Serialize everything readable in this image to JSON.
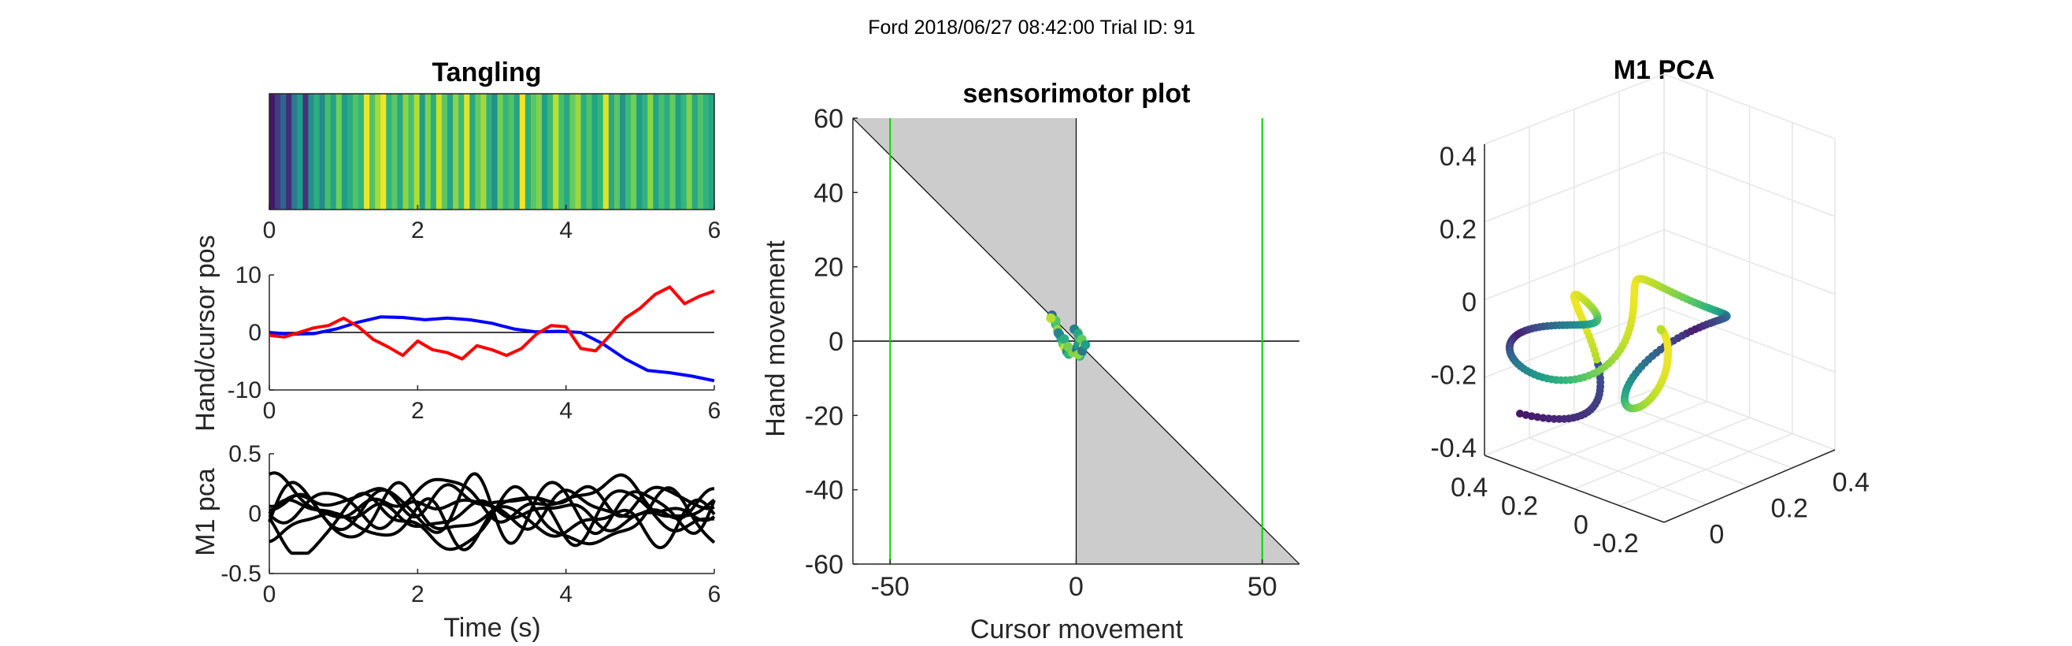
{
  "figure": {
    "suptitle": "Ford 2018/06/27 08:42:00 Trial ID: 91"
  },
  "chart_data": [
    {
      "id": "tangling",
      "type": "heatmap",
      "title": "Tangling",
      "xlim": [
        0,
        6
      ],
      "xticks": [
        "0",
        "2",
        "4",
        "6"
      ],
      "colormap": "viridis",
      "values": [
        0.06,
        0.18,
        0.32,
        0.12,
        0.42,
        0.55,
        0.15,
        0.5,
        0.62,
        0.48,
        0.7,
        0.58,
        0.78,
        0.55,
        0.62,
        0.72,
        0.66,
        0.97,
        0.72,
        0.86,
        0.98,
        0.65,
        0.74,
        0.6,
        0.82,
        0.7,
        0.88,
        0.55,
        0.8,
        0.62,
        0.92,
        0.74,
        0.58,
        0.82,
        0.68,
        0.95,
        0.6,
        0.76,
        0.86,
        0.64,
        0.5,
        0.78,
        0.66,
        0.72,
        0.58,
        0.98,
        0.62,
        0.74,
        0.8,
        0.56,
        0.68,
        0.9,
        0.7,
        0.6,
        0.76,
        0.85,
        0.62,
        0.72,
        0.58,
        0.66,
        0.95,
        0.6,
        0.74,
        0.52,
        0.68,
        0.78,
        0.55,
        0.64,
        0.82,
        0.58,
        0.7,
        0.62,
        0.76,
        0.56,
        0.66,
        0.8,
        0.6,
        0.72,
        0.64,
        0.58
      ]
    },
    {
      "id": "hand-cursor",
      "type": "line",
      "ylabel": "Hand/cursor pos",
      "xlim": [
        0,
        6
      ],
      "ylim": [
        -10,
        10
      ],
      "xticks": [
        "0",
        "2",
        "4",
        "6"
      ],
      "yticks": [
        "10",
        "0",
        "-10"
      ],
      "series": [
        {
          "color": "#0000ff",
          "x": [
            0,
            0.3,
            0.6,
            0.9,
            1.2,
            1.5,
            1.8,
            2.1,
            2.4,
            2.7,
            3.0,
            3.3,
            3.6,
            3.9,
            4.2,
            4.5,
            4.8,
            5.1,
            5.4,
            5.7,
            6.0
          ],
          "y": [
            0,
            -0.3,
            -0.2,
            0.6,
            1.8,
            2.7,
            2.6,
            2.2,
            2.5,
            2.2,
            1.6,
            0.6,
            0.1,
            0.2,
            0,
            -2,
            -4.6,
            -6.6,
            -7,
            -7.6,
            -8.4
          ]
        },
        {
          "color": "#ff0000",
          "x": [
            0,
            0.2,
            0.4,
            0.6,
            0.8,
            1.0,
            1.2,
            1.4,
            1.6,
            1.8,
            2.0,
            2.2,
            2.4,
            2.6,
            2.8,
            3.0,
            3.2,
            3.4,
            3.6,
            3.8,
            4.0,
            4.2,
            4.4,
            4.6,
            4.8,
            5.0,
            5.2,
            5.4,
            5.6,
            5.8,
            6.0
          ],
          "y": [
            -0.5,
            -0.8,
            0,
            0.8,
            1.2,
            2.5,
            1,
            -1.2,
            -2.5,
            -4,
            -1.5,
            -3,
            -3.5,
            -4.6,
            -2.3,
            -3,
            -4,
            -2.8,
            -0.3,
            1.2,
            1,
            -2.8,
            -3.2,
            -0.4,
            2.5,
            4.2,
            6.6,
            7.9,
            5,
            6.3,
            7.2
          ]
        }
      ],
      "zero_line": true
    },
    {
      "id": "m1-pca-traces",
      "type": "line",
      "ylabel": "M1 pca",
      "xlabel": "Time (s)",
      "xlim": [
        0,
        6
      ],
      "ylim": [
        -0.5,
        0.5
      ],
      "xticks": [
        "0",
        "2",
        "4",
        "6"
      ],
      "yticks": [
        "0.5",
        "0",
        "-0.5"
      ],
      "n_series": 8,
      "color": "#000000"
    },
    {
      "id": "sensorimotor",
      "type": "scatter",
      "title": "sensorimotor plot",
      "xlabel": "Cursor movement",
      "ylabel": "Hand movement",
      "xlim": [
        -60,
        60
      ],
      "ylim": [
        -60,
        60
      ],
      "xticks": [
        "-50",
        "0",
        "50"
      ],
      "yticks": [
        "60",
        "40",
        "20",
        "0",
        "-20",
        "-40",
        "-60"
      ],
      "vlines": [
        -50,
        50
      ],
      "vline_color": "#00d800",
      "shade_color": "#cccccc",
      "points": [
        [
          -6.5,
          7
        ],
        [
          -6,
          5.8
        ],
        [
          -5.5,
          4.5
        ],
        [
          -5,
          3
        ],
        [
          -4.5,
          1.8
        ],
        [
          -4,
          0.5
        ],
        [
          -3.5,
          -0.8
        ],
        [
          -3,
          -1.8
        ],
        [
          -2.5,
          -2.8
        ],
        [
          -2,
          -3.5
        ],
        [
          -1,
          -3
        ],
        [
          0,
          -2
        ],
        [
          0.5,
          -1
        ],
        [
          0.8,
          0.8
        ],
        [
          0.3,
          2.5
        ],
        [
          -0.5,
          3.2
        ],
        [
          0.5,
          2
        ],
        [
          1.5,
          0.5
        ],
        [
          2,
          -1.5
        ],
        [
          1.5,
          -3
        ],
        [
          1,
          -4
        ],
        [
          0.5,
          -3.6
        ],
        [
          1.6,
          -2.6
        ],
        [
          2.5,
          -1
        ],
        [
          -5.5,
          5.5
        ],
        [
          -6.8,
          6.2
        ],
        [
          -4.8,
          2.2
        ],
        [
          -3.2,
          0.6
        ],
        [
          -2.2,
          -1.5
        ]
      ]
    },
    {
      "id": "m1-pca-3d",
      "type": "scatter",
      "title": "M1 PCA",
      "zticks": [
        "0.4",
        "0.2",
        "0",
        "-0.2",
        "-0.4"
      ],
      "xticks": [
        "0.4",
        "0.2",
        "0",
        "-0.2"
      ],
      "yticks": [
        "0",
        "0.2",
        "0.4"
      ],
      "colormap": "viridis"
    }
  ]
}
